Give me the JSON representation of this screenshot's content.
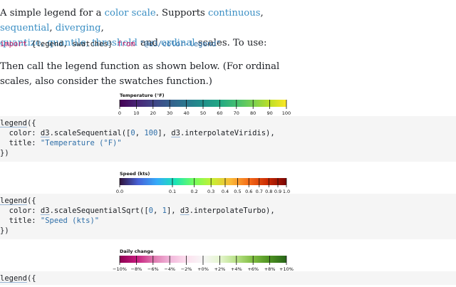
{
  "intro": {
    "t1": "A simple legend for a ",
    "link_color_scale": "color scale",
    "t2": ". Supports ",
    "link_continuous": "continuous",
    "t3": ", ",
    "link_sequential": "sequential",
    "t4": ", ",
    "link_diverging": "diverging",
    "t5": ",",
    "link_quantize": "quantize, quantile, threshold",
    "t6": " and ",
    "link_ordinal": "ordinal",
    "t7": " scales. To use:"
  },
  "import_line": {
    "kw_import": "import",
    "names": " {legend, swatches} ",
    "kw_from": "from",
    "space": " ",
    "module": "\"@d3/color-legend\""
  },
  "para2": "Then call the legend function as shown below. (For ordinal scales, also consider the swatches function.)",
  "legends": [
    {
      "title": "Temperature (°F)",
      "ticks": [
        "0",
        "10",
        "20",
        "30",
        "40",
        "50",
        "60",
        "70",
        "80",
        "90",
        "100"
      ],
      "colors": [
        "#440154",
        "#482475",
        "#414487",
        "#355f8d",
        "#2a788e",
        "#21918c",
        "#22a884",
        "#44bf70",
        "#7ad151",
        "#bddf26",
        "#fde725"
      ]
    },
    {
      "title": "Speed (kts)",
      "ticks": [
        "0.0",
        "0.1",
        "0.2",
        "0.3",
        "0.4",
        "0.5",
        "0.6",
        "0.7",
        "0.8",
        "0.9",
        "1.0"
      ],
      "colors": [
        "#30123b",
        "#4662d7",
        "#36aaf9",
        "#1ae4b6",
        "#72fe5e",
        "#c7ef34",
        "#fbb938",
        "#f56918",
        "#c92903",
        "#7a0403"
      ]
    },
    {
      "title": "Daily change",
      "ticks": [
        "−10%",
        "−8%",
        "−6%",
        "−4%",
        "−2%",
        "+0%",
        "+2%",
        "+4%",
        "+6%",
        "+8%",
        "+10%"
      ],
      "colors": [
        "#8e0152",
        "#c51b7d",
        "#de77ae",
        "#f1b6da",
        "#fde0ef",
        "#f7f7f7",
        "#e6f5d0",
        "#b8e186",
        "#7fbc41",
        "#4d9221",
        "#276419"
      ]
    }
  ],
  "code1": {
    "l1_fn": "legend",
    "l1_rest": "({",
    "l2_a": "  color: ",
    "l2_d3a": "d3",
    "l2_b": ".scaleSequential([",
    "l2_n1": "0",
    "l2_c": ", ",
    "l2_n2": "100",
    "l2_d": "], ",
    "l2_d3b": "d3",
    "l2_e": ".interpolateViridis),",
    "l3_a": "  title: ",
    "l3_str": "\"Temperature (°F)\"",
    "l4": "})"
  },
  "code2": {
    "l1_fn": "legend",
    "l1_rest": "({",
    "l2_a": "  color: ",
    "l2_d3a": "d3",
    "l2_b": ".scaleSequentialSqrt([",
    "l2_n1": "0",
    "l2_c": ", ",
    "l2_n2": "1",
    "l2_d": "], ",
    "l2_d3b": "d3",
    "l2_e": ".interpolateTurbo),",
    "l3_a": "  title: ",
    "l3_str": "\"Speed (kts)\"",
    "l4": "})"
  },
  "code3": {
    "l1_fn": "legend",
    "l1_rest": "({"
  }
}
